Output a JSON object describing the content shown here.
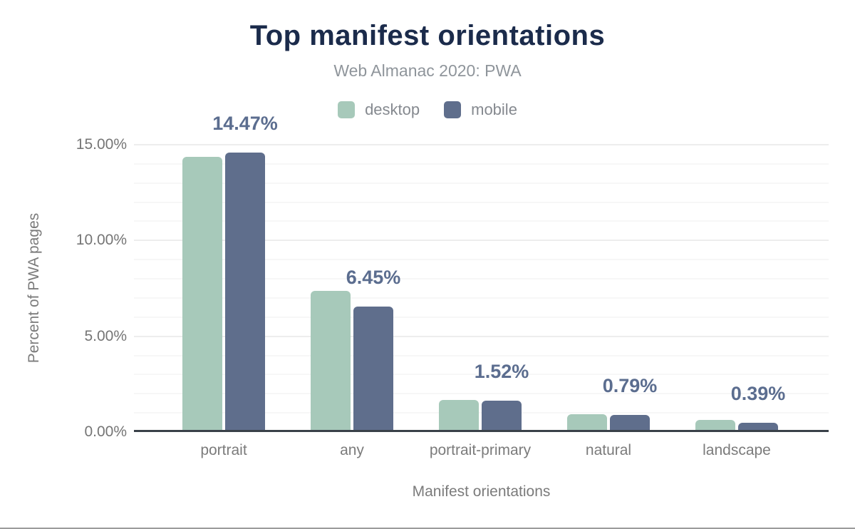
{
  "figure": {
    "title": "Top manifest orientations",
    "subtitle": "Web Almanac 2020: PWA"
  },
  "chart_data": {
    "type": "bar",
    "title": "Top manifest orientations",
    "subtitle": "Web Almanac 2020: PWA",
    "categories": [
      "portrait",
      "any",
      "portrait-primary",
      "natural",
      "landscape"
    ],
    "series": [
      {
        "name": "desktop",
        "color": "#a7c9ba",
        "values": [
          14.25,
          7.25,
          1.56,
          0.81,
          0.52
        ]
      },
      {
        "name": "mobile",
        "color": "#5f6e8c",
        "values": [
          14.47,
          6.45,
          1.52,
          0.79,
          0.39
        ]
      }
    ],
    "data_labels": [
      "14.47%",
      "6.45%",
      "1.52%",
      "0.79%",
      "0.39%"
    ],
    "data_label_series": "mobile",
    "xlabel": "Manifest orientations",
    "ylabel": "Percent of PWA pages",
    "y_ticks": [
      {
        "label": "0.00%",
        "value": 0
      },
      {
        "label": "5.00%",
        "value": 5
      },
      {
        "label": "10.00%",
        "value": 10
      },
      {
        "label": "15.00%",
        "value": 15
      }
    ],
    "ylim": [
      0,
      15
    ],
    "grid": true,
    "minor_grid_step": 1,
    "major_grid_step": 5,
    "legend_position": "top",
    "colors": {
      "title": "#1b2b4b",
      "subtitle": "#8f959b",
      "data_label": "#5b6d8f",
      "axis_text": "#7b7b7b",
      "baseline": "#3a4149"
    }
  }
}
